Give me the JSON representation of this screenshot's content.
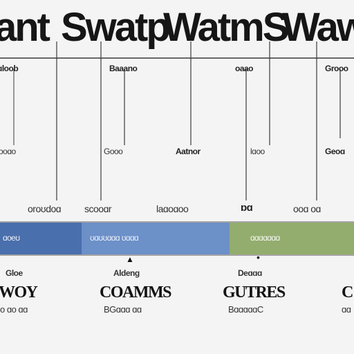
{
  "title": {
    "parts": [
      "ant",
      "Swatp",
      "WatmS",
      "Waw"
    ]
  },
  "top_labels": [
    "ɑloob",
    "Baaano",
    "oaao",
    "Grooo"
  ],
  "mid_labels": [
    "ooɑo",
    "Gooo",
    "Aatnor",
    "lɑoo",
    "Geoɑ"
  ],
  "lower_labels": [
    "oroʊdoɑ",
    "scooɑr",
    "laɑoɑoo",
    "ɒɑ",
    "ooɑ oɑ"
  ],
  "band": {
    "segments": [
      {
        "label": "ɑoeʊ",
        "color": "#4a6fad"
      },
      {
        "label": "ʊɑʊʊɑɑɑ ʊɑɑɑ",
        "color": "#6c90c8"
      },
      {
        "label": "ɑɑɑɑɑɑɑ",
        "color": "#93ad6e"
      }
    ]
  },
  "markers": [
    "▲",
    "•"
  ],
  "columns": [
    {
      "caption": "Gloe",
      "heading": "WOY",
      "sub": "o ɑo ɑɑ"
    },
    {
      "caption": "Aldeng",
      "heading": "COAMMS",
      "sub": "BGɑɑɑ ɑɑ"
    },
    {
      "caption": "Deɑɑɑ",
      "heading": "GUTRES",
      "sub": "BɑɑɑɑɑC"
    },
    {
      "caption": "",
      "heading": "C",
      "sub": "ɑɑ"
    }
  ]
}
